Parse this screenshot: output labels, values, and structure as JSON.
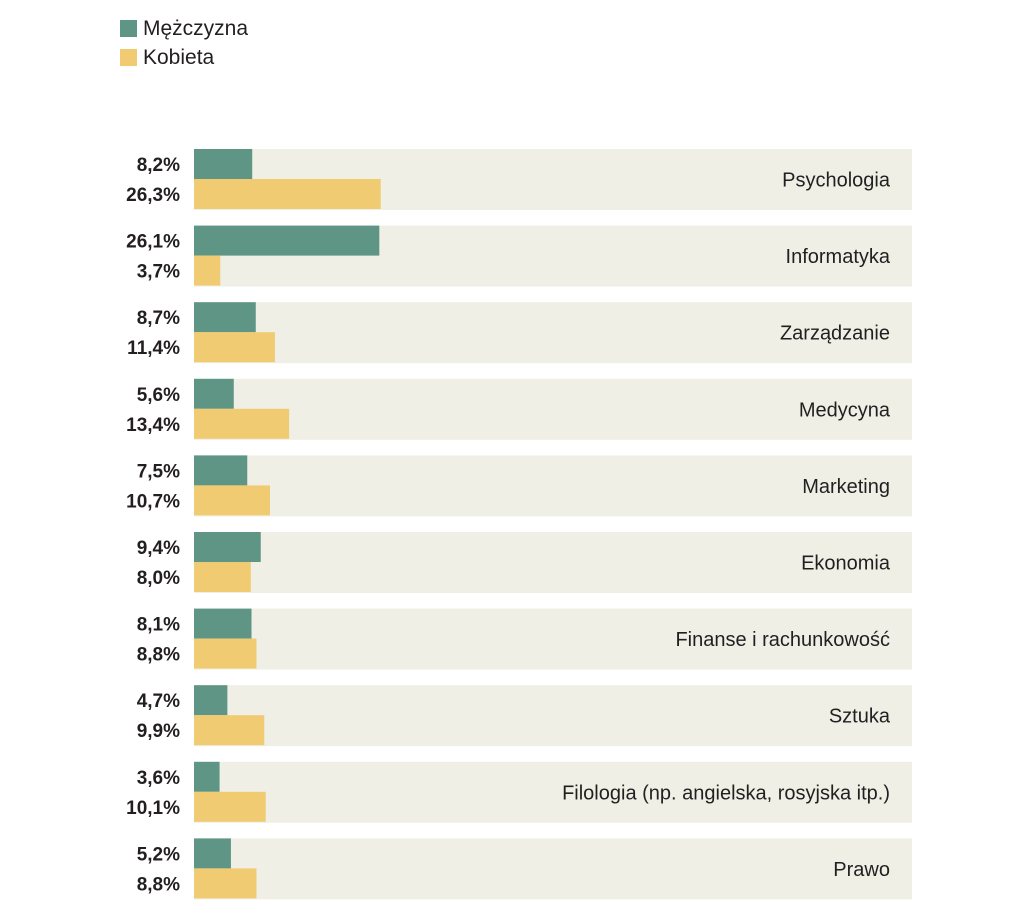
{
  "chart_data": {
    "type": "bar",
    "orientation": "horizontal",
    "categories": [
      "Psychologia",
      "Informatyka",
      "Zarządzanie",
      "Medycyna",
      "Marketing",
      "Ekonomia",
      "Finanse i rachunkowość",
      "Sztuka",
      "Filologia (np. angielska, rosyjska itp.)",
      "Prawo"
    ],
    "series": [
      {
        "name": "Mężczyzna",
        "color": "#5e9584",
        "values": [
          8.2,
          26.1,
          8.7,
          5.6,
          7.5,
          9.4,
          8.1,
          4.7,
          3.6,
          5.2
        ],
        "labels": [
          "8,2%",
          "26,1%",
          "8,7%",
          "5,6%",
          "7,5%",
          "9,4%",
          "8,1%",
          "4,7%",
          "3,6%",
          "5,2%"
        ]
      },
      {
        "name": "Kobieta",
        "color": "#f0cb72",
        "values": [
          26.3,
          3.7,
          11.4,
          13.4,
          10.7,
          8.0,
          8.8,
          9.9,
          10.1,
          8.8
        ],
        "labels": [
          "26,3%",
          "3,7%",
          "11,4%",
          "13,4%",
          "10,7%",
          "8,0%",
          "8,8%",
          "9,9%",
          "10,1%",
          "8,8%"
        ]
      }
    ],
    "legend_position": "top-left",
    "row_background": "#efefe5",
    "grid": false
  }
}
